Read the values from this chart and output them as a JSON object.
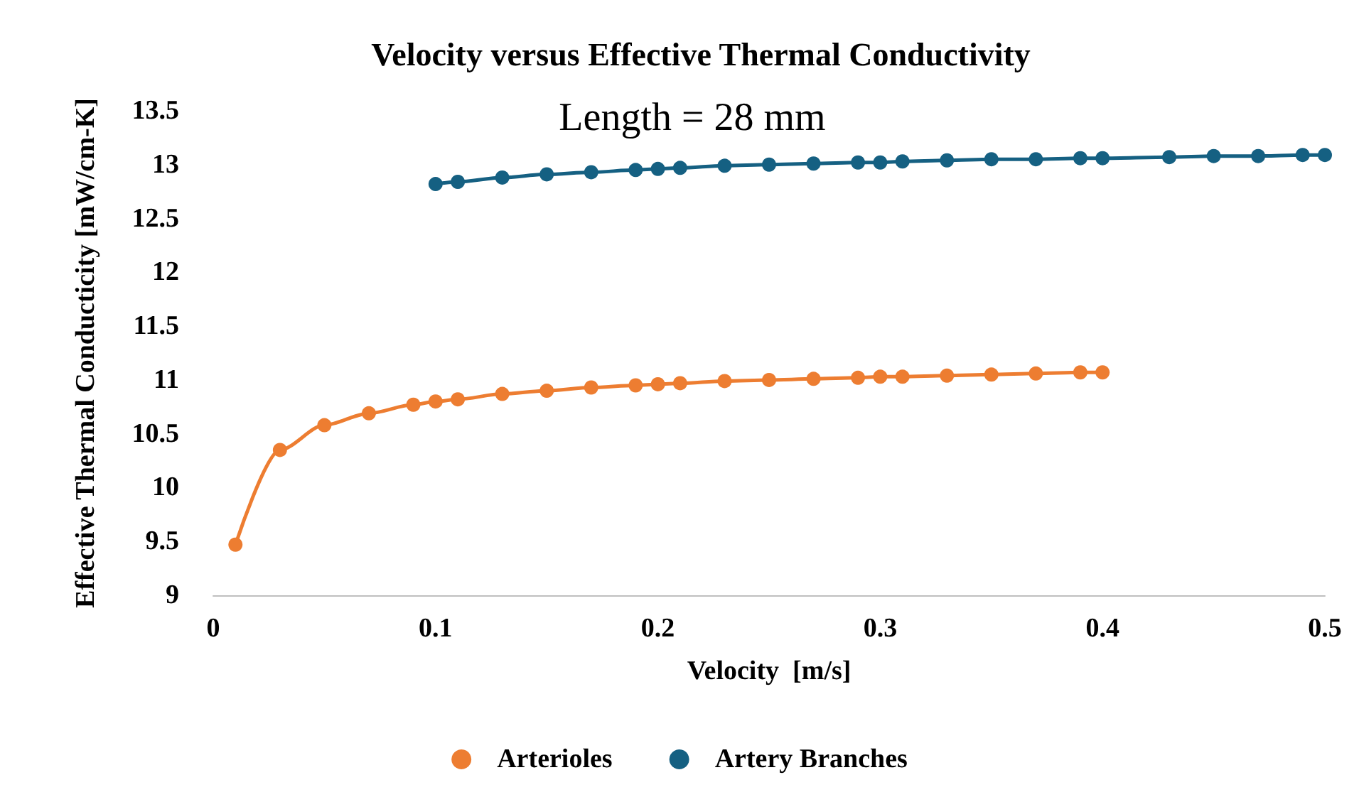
{
  "chart_data": {
    "type": "line",
    "title": "Velocity versus Effective Thermal Conductivity",
    "subtitle": "Length = 28 mm",
    "xlabel": "Velocity  [m/s]",
    "ylabel": "Effective Thermal Conducticity [mW/cm-K]",
    "xlim": [
      0,
      0.5
    ],
    "xticks": [
      0,
      0.1,
      0.2,
      0.3,
      0.4,
      0.5
    ],
    "ylim": [
      9,
      13.5
    ],
    "yticks": [
      9,
      9.5,
      10,
      10.5,
      11,
      11.5,
      12,
      12.5,
      13,
      13.5
    ],
    "grid": false,
    "legend": "bottom",
    "marker": "circle",
    "line_style": "solid",
    "series": [
      {
        "name": "Arterioles",
        "color": "#ed7d31",
        "x": [
          0.01,
          0.03,
          0.05,
          0.07,
          0.09,
          0.1,
          0.11,
          0.13,
          0.15,
          0.17,
          0.19,
          0.2,
          0.21,
          0.23,
          0.25,
          0.27,
          0.29,
          0.3,
          0.31,
          0.33,
          0.35,
          0.37,
          0.39,
          0.4
        ],
        "values": [
          9.47,
          10.35,
          10.58,
          10.69,
          10.77,
          10.8,
          10.82,
          10.87,
          10.9,
          10.93,
          10.95,
          10.96,
          10.97,
          10.99,
          11.0,
          11.01,
          11.02,
          11.03,
          11.03,
          11.04,
          11.05,
          11.06,
          11.07,
          11.07
        ]
      },
      {
        "name": "Artery Branches",
        "color": "#156082",
        "x": [
          0.1,
          0.11,
          0.13,
          0.15,
          0.17,
          0.19,
          0.2,
          0.21,
          0.23,
          0.25,
          0.27,
          0.29,
          0.3,
          0.31,
          0.33,
          0.35,
          0.37,
          0.39,
          0.4,
          0.43,
          0.45,
          0.47,
          0.49,
          0.5
        ],
        "values": [
          12.82,
          12.84,
          12.88,
          12.91,
          12.93,
          12.95,
          12.96,
          12.97,
          12.99,
          13.0,
          13.01,
          13.02,
          13.02,
          13.03,
          13.04,
          13.05,
          13.05,
          13.06,
          13.06,
          13.07,
          13.08,
          13.08,
          13.09,
          13.09
        ]
      }
    ]
  }
}
